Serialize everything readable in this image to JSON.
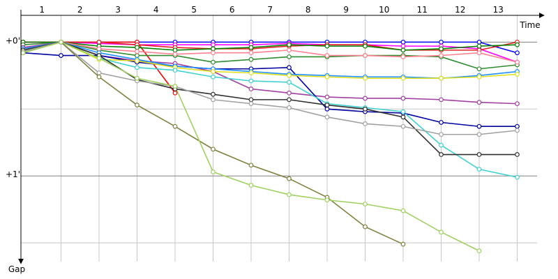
{
  "chart_data": {
    "type": "line",
    "x_label": "Time",
    "y_label": "Gap",
    "x": [
      0,
      1,
      2,
      3,
      4,
      5,
      6,
      7,
      8,
      9,
      10,
      11,
      12,
      13
    ],
    "xlim": [
      -0.055,
      13.67
    ],
    "xticks": [
      1,
      2,
      3,
      4,
      5,
      6,
      7,
      8,
      9,
      10,
      11,
      12,
      13
    ],
    "ylim": [
      -0.2,
      1.64
    ],
    "yticks": [
      {
        "value": 0,
        "label": "+0'"
      },
      {
        "value": 0.5,
        "label": null
      },
      {
        "value": 1,
        "label": "+1'"
      },
      {
        "value": 1.5,
        "label": null
      }
    ],
    "grid": true,
    "series": [
      {
        "color": "#0000ff",
        "values": [
          0,
          0,
          0,
          0,
          0,
          0,
          0,
          0,
          0,
          0,
          0,
          0,
          0,
          0.08
        ]
      },
      {
        "color": "#ff00ff",
        "values": [
          0,
          0,
          0.01,
          0.02,
          0.02,
          0.02,
          0.02,
          0.01,
          0.02,
          0.02,
          0.03,
          0.03,
          0.05,
          0.15
        ]
      },
      {
        "color": "#ff0000",
        "values": [
          0,
          0,
          0,
          0,
          0.38,
          null,
          null,
          null,
          null,
          null,
          null,
          null,
          null,
          null
        ]
      },
      {
        "color": "#e02020",
        "values": [
          0,
          0,
          0,
          0.02,
          0.04,
          0.05,
          0.05,
          0.03,
          0.02,
          0.02,
          0.06,
          0.06,
          0.06,
          0
        ]
      },
      {
        "color": "#008000",
        "values": [
          0,
          0,
          0.03,
          0.04,
          0.06,
          0.05,
          0.04,
          0.02,
          0.03,
          0.03,
          0.06,
          0.05,
          0.03,
          0.02
        ]
      },
      {
        "color": "#2e8b2e",
        "values": [
          0.02,
          0,
          0.06,
          0.1,
          0.1,
          0.15,
          0.13,
          0.11,
          0.11,
          0.1,
          0.1,
          0.11,
          0.2,
          0.17
        ]
      },
      {
        "color": "#ff8090",
        "values": [
          0.05,
          0,
          0.05,
          0.07,
          0.09,
          0.08,
          0.08,
          0.06,
          0.1,
          0.1,
          0.11,
          0.1,
          0.08,
          0.15
        ]
      },
      {
        "color": "#a040a0",
        "values": [
          0.04,
          0,
          0.1,
          0.14,
          0.16,
          0.22,
          0.35,
          0.38,
          0.41,
          0.42,
          0.42,
          0.43,
          0.45,
          0.46
        ]
      },
      {
        "color": "#0000a0",
        "values": [
          0.08,
          0.1,
          0.1,
          0.15,
          0.18,
          0.2,
          0.2,
          0.19,
          0.5,
          0.52,
          0.53,
          0.6,
          0.63,
          0.63
        ]
      },
      {
        "color": "#1e90ff",
        "values": [
          0.05,
          0,
          0.08,
          0.13,
          0.18,
          0.2,
          0.22,
          0.24,
          0.25,
          0.26,
          0.26,
          0.27,
          0.25,
          0.22
        ]
      },
      {
        "color": "#e0e020",
        "values": [
          0.06,
          0,
          0.13,
          0.14,
          0.19,
          0.22,
          0.23,
          0.25,
          0.26,
          0.27,
          0.27,
          0.27,
          0.26,
          0.24
        ]
      },
      {
        "color": "#40d0d0",
        "values": [
          0.07,
          0,
          0.12,
          0.19,
          0.21,
          0.26,
          0.29,
          0.3,
          0.46,
          0.49,
          0.52,
          0.77,
          0.95,
          1.01
        ]
      },
      {
        "color": "#303030",
        "values": [
          0.06,
          0,
          0.1,
          0.28,
          0.35,
          0.39,
          0.43,
          0.43,
          0.47,
          0.5,
          0.56,
          0.84,
          0.84,
          0.84
        ]
      },
      {
        "color": "#a0a0a0",
        "values": [
          0.07,
          0,
          0.23,
          0.29,
          0.33,
          0.43,
          0.46,
          0.49,
          0.56,
          0.61,
          0.63,
          0.69,
          0.69,
          0.66
        ]
      },
      {
        "color": "#808040",
        "values": [
          0.08,
          0,
          0.26,
          0.47,
          0.63,
          0.8,
          0.92,
          1.02,
          1.16,
          1.38,
          1.51,
          null,
          null,
          null
        ]
      },
      {
        "color": "#a0d060",
        "values": [
          0.08,
          0,
          0.12,
          0.27,
          0.33,
          0.97,
          1.07,
          1.14,
          1.18,
          1.21,
          1.26,
          1.42,
          1.56,
          null
        ]
      }
    ]
  }
}
